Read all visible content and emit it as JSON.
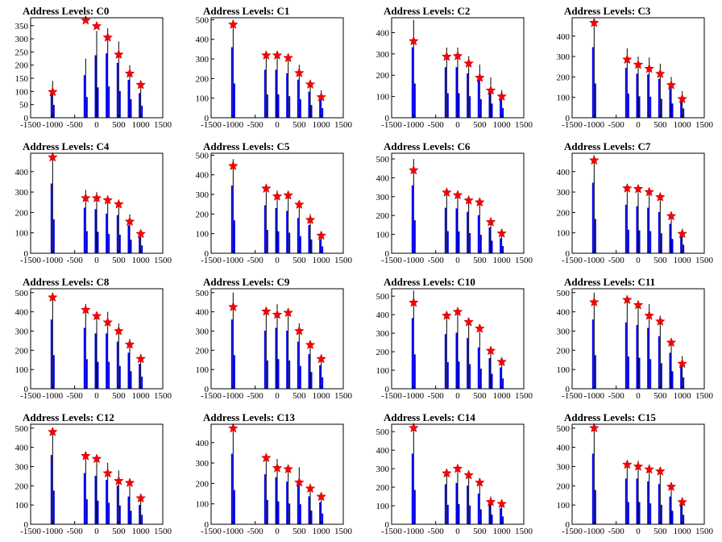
{
  "colors": {
    "bar": "#0000ff",
    "peak_line": "#000000",
    "marker": "#ff0000"
  },
  "chart_data": [
    {
      "type": "bar",
      "title": "Address Levels: C0",
      "xlim": [
        -1500,
        1500
      ],
      "ylim": [
        0,
        380
      ],
      "yticks": [
        0,
        50,
        100,
        150,
        200,
        250,
        300,
        350
      ],
      "xticks": [
        -1500,
        -1000,
        -500,
        0,
        500,
        1000,
        1500
      ],
      "peaks": [
        {
          "x": -1000,
          "bar": 140,
          "star": 98
        },
        {
          "x": -250,
          "bar": 225,
          "star": 370
        },
        {
          "x": 0,
          "bar": 330,
          "star": 348
        },
        {
          "x": 250,
          "bar": 340,
          "star": 305
        },
        {
          "x": 500,
          "bar": 290,
          "star": 240
        },
        {
          "x": 750,
          "bar": 200,
          "star": 168
        },
        {
          "x": 1000,
          "bar": 130,
          "star": 125
        }
      ],
      "grid": false,
      "legend": "none"
    },
    {
      "type": "bar",
      "title": "Address Levels: C1",
      "xlim": [
        -1500,
        1500
      ],
      "ylim": [
        0,
        510
      ],
      "yticks": [
        0,
        100,
        200,
        300,
        400,
        500
      ],
      "xticks": [
        -1500,
        -1000,
        -500,
        0,
        500,
        1000,
        1500
      ],
      "peaks": [
        {
          "x": -1000,
          "bar": 500,
          "star": 475
        },
        {
          "x": -250,
          "bar": 340,
          "star": 318
        },
        {
          "x": 0,
          "bar": 340,
          "star": 318
        },
        {
          "x": 250,
          "bar": 315,
          "star": 305
        },
        {
          "x": 500,
          "bar": 270,
          "star": 228
        },
        {
          "x": 750,
          "bar": 185,
          "star": 170
        },
        {
          "x": 1000,
          "bar": 140,
          "star": 105
        }
      ],
      "grid": false,
      "legend": "none"
    },
    {
      "type": "bar",
      "title": "Address Levels: C2",
      "xlim": [
        -1500,
        1500
      ],
      "ylim": [
        0,
        470
      ],
      "yticks": [
        0,
        100,
        200,
        300,
        400
      ],
      "xticks": [
        -1500,
        -1000,
        -500,
        0,
        500,
        1000,
        1500
      ],
      "peaks": [
        {
          "x": -1000,
          "bar": 460,
          "star": 360
        },
        {
          "x": -250,
          "bar": 330,
          "star": 287
        },
        {
          "x": 0,
          "bar": 330,
          "star": 290
        },
        {
          "x": 250,
          "bar": 290,
          "star": 255
        },
        {
          "x": 500,
          "bar": 250,
          "star": 188
        },
        {
          "x": 750,
          "bar": 190,
          "star": 128
        },
        {
          "x": 1000,
          "bar": 130,
          "star": 100
        }
      ],
      "grid": false,
      "legend": "none"
    },
    {
      "type": "bar",
      "title": "Address Levels: C3",
      "xlim": [
        -1500,
        1500
      ],
      "ylim": [
        0,
        490
      ],
      "yticks": [
        0,
        100,
        200,
        300,
        400
      ],
      "xticks": [
        -1500,
        -1000,
        -500,
        0,
        500,
        1000,
        1500
      ],
      "peaks": [
        {
          "x": -1000,
          "bar": 480,
          "star": 465
        },
        {
          "x": -250,
          "bar": 340,
          "star": 285
        },
        {
          "x": 0,
          "bar": 300,
          "star": 260
        },
        {
          "x": 250,
          "bar": 295,
          "star": 240
        },
        {
          "x": 500,
          "bar": 265,
          "star": 215
        },
        {
          "x": 750,
          "bar": 200,
          "star": 160
        },
        {
          "x": 1000,
          "bar": 130,
          "star": 92
        }
      ],
      "grid": false,
      "legend": "none"
    },
    {
      "type": "bar",
      "title": "Address Levels: C4",
      "xlim": [
        -1500,
        1500
      ],
      "ylim": [
        0,
        490
      ],
      "yticks": [
        0,
        100,
        200,
        300,
        400
      ],
      "xticks": [
        -1500,
        -1000,
        -500,
        0,
        500,
        1000,
        1500
      ],
      "peaks": [
        {
          "x": -1000,
          "bar": 475,
          "star": 470
        },
        {
          "x": -250,
          "bar": 310,
          "star": 270
        },
        {
          "x": 0,
          "bar": 300,
          "star": 270
        },
        {
          "x": 250,
          "bar": 270,
          "star": 260
        },
        {
          "x": 500,
          "bar": 260,
          "star": 240
        },
        {
          "x": 750,
          "bar": 190,
          "star": 155
        },
        {
          "x": 1000,
          "bar": 110,
          "star": 95
        }
      ],
      "grid": false,
      "legend": "none"
    },
    {
      "type": "bar",
      "title": "Address Levels: C5",
      "xlim": [
        -1500,
        1500
      ],
      "ylim": [
        0,
        510
      ],
      "yticks": [
        0,
        100,
        200,
        300,
        400,
        500
      ],
      "xticks": [
        -1500,
        -1000,
        -500,
        0,
        500,
        1000,
        1500
      ],
      "peaks": [
        {
          "x": -1000,
          "bar": 480,
          "star": 445
        },
        {
          "x": -250,
          "bar": 340,
          "star": 330
        },
        {
          "x": 0,
          "bar": 320,
          "star": 290
        },
        {
          "x": 250,
          "bar": 300,
          "star": 295
        },
        {
          "x": 500,
          "bar": 250,
          "star": 248
        },
        {
          "x": 750,
          "bar": 200,
          "star": 170
        },
        {
          "x": 1000,
          "bar": 100,
          "star": 90
        }
      ],
      "grid": false,
      "legend": "none"
    },
    {
      "type": "bar",
      "title": "Address Levels: C6",
      "xlim": [
        -1500,
        1500
      ],
      "ylim": [
        0,
        530
      ],
      "yticks": [
        0,
        100,
        200,
        300,
        400,
        500
      ],
      "xticks": [
        -1500,
        -1000,
        -500,
        0,
        500,
        1000,
        1500
      ],
      "peaks": [
        {
          "x": -1000,
          "bar": 500,
          "star": 440
        },
        {
          "x": -250,
          "bar": 335,
          "star": 322
        },
        {
          "x": 0,
          "bar": 330,
          "star": 308
        },
        {
          "x": 250,
          "bar": 305,
          "star": 280
        },
        {
          "x": 500,
          "bar": 280,
          "star": 270
        },
        {
          "x": 750,
          "bar": 190,
          "star": 165
        },
        {
          "x": 1000,
          "bar": 110,
          "star": 105
        }
      ],
      "grid": false,
      "legend": "none"
    },
    {
      "type": "bar",
      "title": "Address Levels: C7",
      "xlim": [
        -1500,
        1500
      ],
      "ylim": [
        0,
        490
      ],
      "yticks": [
        0,
        100,
        200,
        300,
        400
      ],
      "xticks": [
        -1500,
        -1000,
        -500,
        0,
        500,
        1000,
        1500
      ],
      "peaks": [
        {
          "x": -1000,
          "bar": 480,
          "star": 455
        },
        {
          "x": -250,
          "bar": 330,
          "star": 318
        },
        {
          "x": 0,
          "bar": 320,
          "star": 315
        },
        {
          "x": 250,
          "bar": 310,
          "star": 300
        },
        {
          "x": 500,
          "bar": 280,
          "star": 275
        },
        {
          "x": 750,
          "bar": 200,
          "star": 182
        },
        {
          "x": 1000,
          "bar": 120,
          "star": 95
        }
      ],
      "grid": false,
      "legend": "none"
    },
    {
      "type": "bar",
      "title": "Address Levels: C8",
      "xlim": [
        -1500,
        1500
      ],
      "ylim": [
        0,
        520
      ],
      "yticks": [
        0,
        100,
        200,
        300,
        400,
        500
      ],
      "xticks": [
        -1500,
        -1000,
        -500,
        0,
        500,
        1000,
        1500
      ],
      "peaks": [
        {
          "x": -1000,
          "bar": 500,
          "star": 475
        },
        {
          "x": -250,
          "bar": 440,
          "star": 410
        },
        {
          "x": 0,
          "bar": 400,
          "star": 378
        },
        {
          "x": 250,
          "bar": 400,
          "star": 345
        },
        {
          "x": 500,
          "bar": 340,
          "star": 300
        },
        {
          "x": 750,
          "bar": 260,
          "star": 230
        },
        {
          "x": 1000,
          "bar": 180,
          "star": 155
        }
      ],
      "grid": false,
      "legend": "none"
    },
    {
      "type": "bar",
      "title": "Address Levels: C9",
      "xlim": [
        -1500,
        1500
      ],
      "ylim": [
        0,
        520
      ],
      "yticks": [
        0,
        100,
        200,
        300,
        400,
        500
      ],
      "xticks": [
        -1500,
        -1000,
        -500,
        0,
        500,
        1000,
        1500
      ],
      "peaks": [
        {
          "x": -1000,
          "bar": 500,
          "star": 425
        },
        {
          "x": -250,
          "bar": 420,
          "star": 402
        },
        {
          "x": 0,
          "bar": 440,
          "star": 385
        },
        {
          "x": 250,
          "bar": 420,
          "star": 395
        },
        {
          "x": 500,
          "bar": 340,
          "star": 300
        },
        {
          "x": 750,
          "bar": 250,
          "star": 228
        },
        {
          "x": 1000,
          "bar": 170,
          "star": 155
        }
      ],
      "grid": false,
      "legend": "none"
    },
    {
      "type": "bar",
      "title": "Address Levels: C10",
      "xlim": [
        -1500,
        1500
      ],
      "ylim": [
        0,
        540
      ],
      "yticks": [
        0,
        100,
        200,
        300,
        400,
        500
      ],
      "xticks": [
        -1500,
        -1000,
        -500,
        0,
        500,
        1000,
        1500
      ],
      "peaks": [
        {
          "x": -1000,
          "bar": 530,
          "star": 465
        },
        {
          "x": -250,
          "bar": 410,
          "star": 395
        },
        {
          "x": 0,
          "bar": 420,
          "star": 415
        },
        {
          "x": 250,
          "bar": 380,
          "star": 360
        },
        {
          "x": 500,
          "bar": 310,
          "star": 325
        },
        {
          "x": 750,
          "bar": 230,
          "star": 205
        },
        {
          "x": 1000,
          "bar": 160,
          "star": 145
        }
      ],
      "grid": false,
      "legend": "none"
    },
    {
      "type": "bar",
      "title": "Address Levels: C11",
      "xlim": [
        -1500,
        1500
      ],
      "ylim": [
        0,
        520
      ],
      "yticks": [
        0,
        100,
        200,
        300,
        400,
        500
      ],
      "xticks": [
        -1500,
        -1000,
        -500,
        0,
        500,
        1000,
        1500
      ],
      "peaks": [
        {
          "x": -1000,
          "bar": 500,
          "star": 450
        },
        {
          "x": -250,
          "bar": 480,
          "star": 462
        },
        {
          "x": 0,
          "bar": 460,
          "star": 435
        },
        {
          "x": 250,
          "bar": 440,
          "star": 380
        },
        {
          "x": 500,
          "bar": 380,
          "star": 350
        },
        {
          "x": 750,
          "bar": 260,
          "star": 240
        },
        {
          "x": 1000,
          "bar": 170,
          "star": 130
        }
      ],
      "grid": false,
      "legend": "none"
    },
    {
      "type": "bar",
      "title": "Address Levels: C12",
      "xlim": [
        -1500,
        1500
      ],
      "ylim": [
        0,
        520
      ],
      "yticks": [
        0,
        100,
        200,
        300,
        400,
        500
      ],
      "xticks": [
        -1500,
        -1000,
        -500,
        0,
        500,
        1000,
        1500
      ],
      "peaks": [
        {
          "x": -1000,
          "bar": 500,
          "star": 480
        },
        {
          "x": -250,
          "bar": 370,
          "star": 355
        },
        {
          "x": 0,
          "bar": 350,
          "star": 340
        },
        {
          "x": 250,
          "bar": 320,
          "star": 265
        },
        {
          "x": 500,
          "bar": 280,
          "star": 225
        },
        {
          "x": 750,
          "bar": 200,
          "star": 215
        },
        {
          "x": 1000,
          "bar": 140,
          "star": 135
        }
      ],
      "grid": false,
      "legend": "none"
    },
    {
      "type": "bar",
      "title": "Address Levels: C13",
      "xlim": [
        -1500,
        1500
      ],
      "ylim": [
        0,
        490
      ],
      "yticks": [
        0,
        100,
        200,
        300,
        400
      ],
      "xticks": [
        -1500,
        -1000,
        -500,
        0,
        500,
        1000,
        1500
      ],
      "peaks": [
        {
          "x": -1000,
          "bar": 480,
          "star": 470
        },
        {
          "x": -250,
          "bar": 340,
          "star": 325
        },
        {
          "x": 0,
          "bar": 320,
          "star": 275
        },
        {
          "x": 250,
          "bar": 290,
          "star": 270
        },
        {
          "x": 500,
          "bar": 280,
          "star": 205
        },
        {
          "x": 750,
          "bar": 190,
          "star": 175
        },
        {
          "x": 1000,
          "bar": 150,
          "star": 135
        }
      ],
      "grid": false,
      "legend": "none"
    },
    {
      "type": "bar",
      "title": "Address Levels: C14",
      "xlim": [
        -1500,
        1500
      ],
      "ylim": [
        0,
        540
      ],
      "yticks": [
        0,
        100,
        200,
        300,
        400,
        500
      ],
      "xticks": [
        -1500,
        -1000,
        -500,
        0,
        500,
        1000,
        1500
      ],
      "peaks": [
        {
          "x": -1000,
          "bar": 530,
          "star": 520
        },
        {
          "x": -250,
          "bar": 300,
          "star": 275
        },
        {
          "x": 0,
          "bar": 310,
          "star": 300
        },
        {
          "x": 250,
          "bar": 290,
          "star": 265
        },
        {
          "x": 500,
          "bar": 230,
          "star": 225
        },
        {
          "x": 750,
          "bar": 150,
          "star": 120
        },
        {
          "x": 1000,
          "bar": 120,
          "star": 110
        }
      ],
      "grid": false,
      "legend": "none"
    },
    {
      "type": "bar",
      "title": "Address Levels: C15",
      "xlim": [
        -1500,
        1500
      ],
      "ylim": [
        0,
        520
      ],
      "yticks": [
        0,
        100,
        200,
        300,
        400,
        500
      ],
      "xticks": [
        -1500,
        -1000,
        -500,
        0,
        500,
        1000,
        1500
      ],
      "peaks": [
        {
          "x": -1000,
          "bar": 510,
          "star": 500
        },
        {
          "x": -250,
          "bar": 330,
          "star": 310
        },
        {
          "x": 0,
          "bar": 330,
          "star": 300
        },
        {
          "x": 250,
          "bar": 310,
          "star": 285
        },
        {
          "x": 500,
          "bar": 290,
          "star": 275
        },
        {
          "x": 750,
          "bar": 200,
          "star": 195
        },
        {
          "x": 1000,
          "bar": 140,
          "star": 115
        }
      ],
      "grid": false,
      "legend": "none"
    }
  ]
}
